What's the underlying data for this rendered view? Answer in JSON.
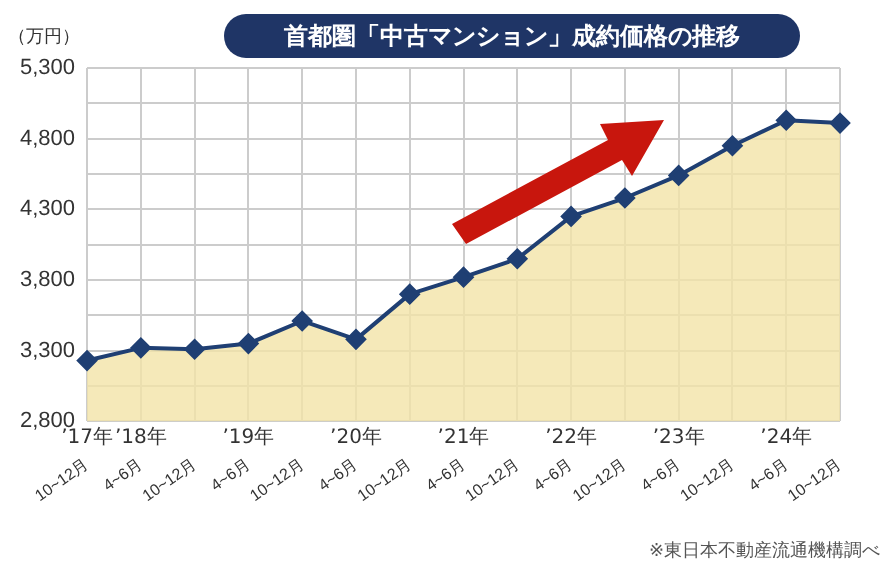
{
  "chart_data": {
    "type": "line",
    "title": "首都圏「中古マンション」成約価格の推移",
    "ylabel": "（万円）",
    "categories": [
      "10~12月 ’17年",
      "4~6月 ’18年",
      "10~12月",
      "4~6月 ’19年",
      "10~12月",
      "4~6月 ’20年",
      "10~12月",
      "4~6月 ’21年",
      "10~12月",
      "4~6月 ’22年",
      "10~12月",
      "4~6月 ’23年",
      "10~12月",
      "4~6月 ’24年",
      "10~12月"
    ],
    "series": [
      {
        "color": "#1f3f73",
        "values": [
          3230,
          3320,
          3310,
          3350,
          3510,
          3380,
          3700,
          3820,
          3950,
          4250,
          4380,
          4540,
          4750,
          4930,
          4910
        ]
      },
      {
        "type": "area",
        "color": "#f3e4a8",
        "values": [
          3230,
          3320,
          3310,
          3350,
          3510,
          3380,
          3700,
          3820,
          3950,
          4250,
          4380,
          4540,
          4750,
          4930,
          4910
        ]
      }
    ],
    "ylim": [
      2800,
      5300
    ],
    "yticks": [
      {
        "value": 2800,
        "label": "2,800"
      },
      {
        "value": 3050,
        "label": null
      },
      {
        "value": 3300,
        "label": "3,300"
      },
      {
        "value": 3550,
        "label": null
      },
      {
        "value": 3800,
        "label": "3,800"
      },
      {
        "value": 4050,
        "label": null
      },
      {
        "value": 4300,
        "label": "4,300"
      },
      {
        "value": 4550,
        "label": null
      },
      {
        "value": 4800,
        "label": "4,800"
      },
      {
        "value": 5050,
        "label": null
      },
      {
        "value": 5300,
        "label": "5,300"
      }
    ],
    "grid": true,
    "marker": "diamond",
    "line_style": "solid",
    "annotations": [
      "※東日本不動産流通機構調べ"
    ]
  }
}
